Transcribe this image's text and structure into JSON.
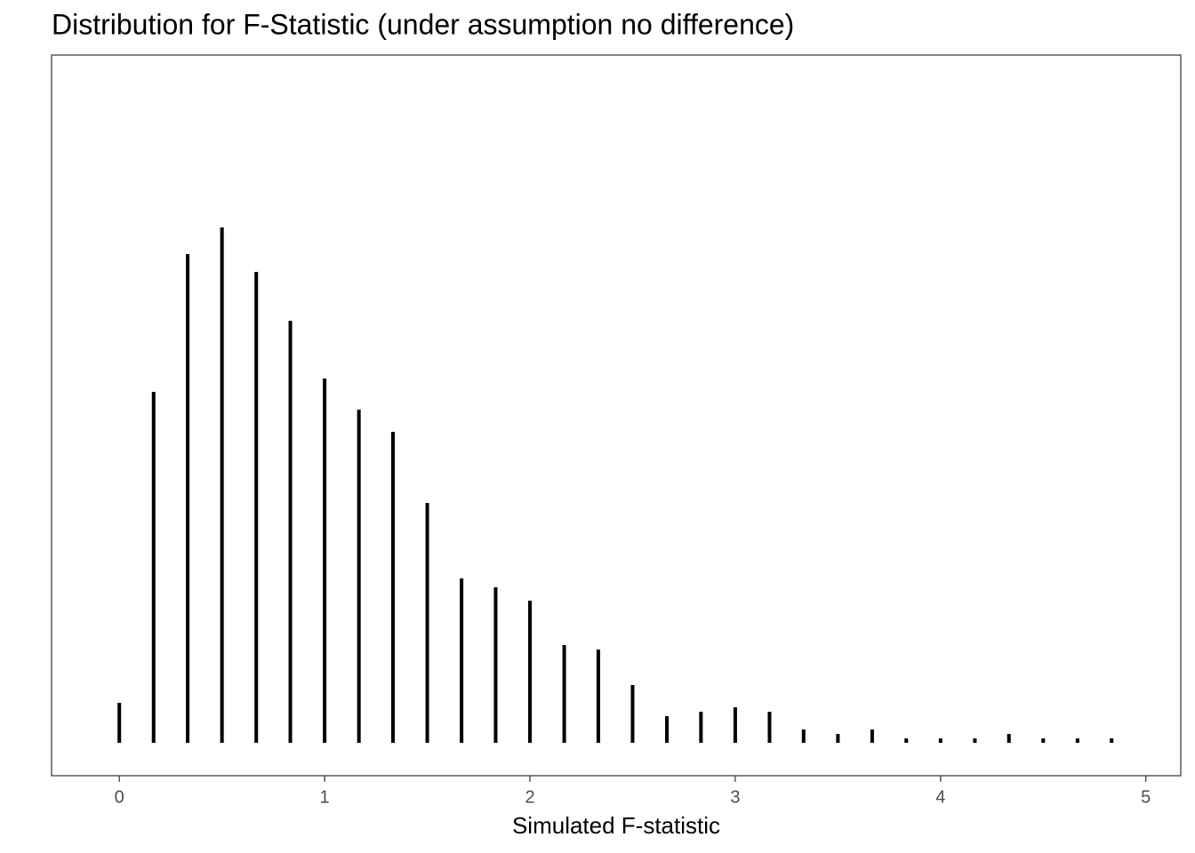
{
  "chart_data": {
    "type": "dotplot",
    "title": "Distribution for F-Statistic (under assumption no difference)",
    "x_label": "Simulated F-statistic",
    "x": [
      0,
      0.167,
      0.333,
      0.5,
      0.667,
      0.833,
      1,
      1.167,
      1.333,
      1.5,
      1.667,
      1.833,
      2,
      2.167,
      2.333,
      2.5,
      2.667,
      2.833,
      3,
      3.167,
      3.333,
      3.5,
      3.667,
      3.833,
      4,
      4.167,
      4.333,
      4.5,
      4.667,
      4.833
    ],
    "values": [
      9,
      79,
      110,
      116,
      106,
      95,
      82,
      75,
      70,
      54,
      37,
      35,
      32,
      22,
      21,
      13,
      6,
      7,
      8,
      7,
      3,
      2,
      3,
      1,
      1,
      1,
      2,
      1,
      1,
      1
    ],
    "color": "#000000",
    "xlim": [
      -0.33,
      5.17
    ],
    "xticks": [
      0,
      1,
      2,
      3,
      4,
      5
    ]
  }
}
